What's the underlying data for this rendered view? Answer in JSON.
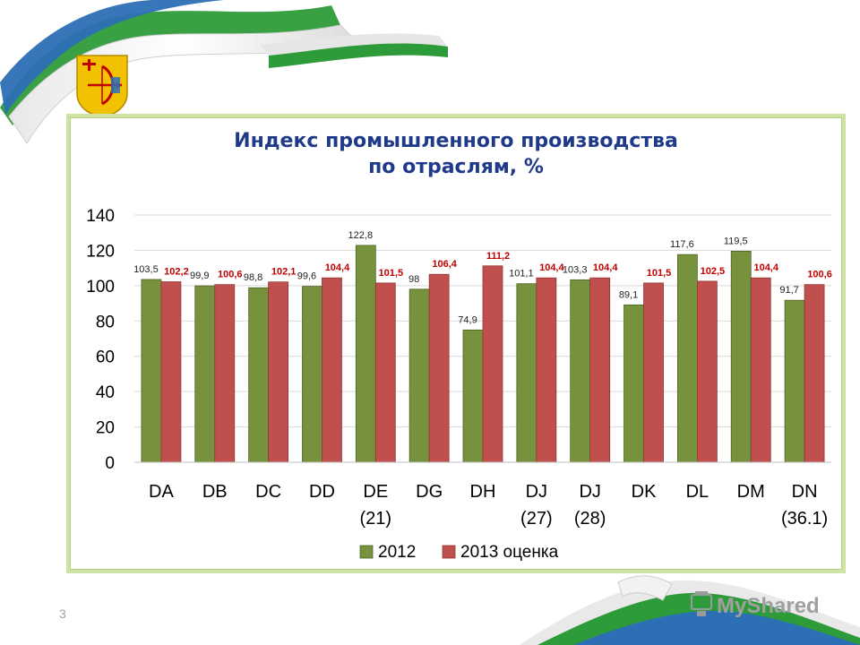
{
  "slide": {
    "number": "3",
    "watermark_text": "MyShared"
  },
  "colors": {
    "series2012": "#76923c",
    "series2013": "#c0504d",
    "title": "#1f3a8a",
    "label2013": "#c00000",
    "ribbonGreen": "#2e9b3a",
    "ribbonBlue": "#2c6fb5"
  },
  "chart_data": {
    "type": "bar",
    "title": "Индекс промышленного производства по отраслям, %",
    "title_lines": [
      "Индекс промышленного производства",
      "по отраслям, %"
    ],
    "categories": [
      "DA",
      "DB",
      "DC",
      "DD",
      "DE (21)",
      "DG",
      "DH",
      "DJ (27)",
      "DJ (28)",
      "DK",
      "DL",
      "DM",
      "DN (36.1)"
    ],
    "category_lines": [
      [
        "DA"
      ],
      [
        "DB"
      ],
      [
        "DC"
      ],
      [
        "DD"
      ],
      [
        "DE",
        "(21)"
      ],
      [
        "DG"
      ],
      [
        "DH"
      ],
      [
        "DJ",
        "(27)"
      ],
      [
        "DJ",
        "(28)"
      ],
      [
        "DK"
      ],
      [
        "DL"
      ],
      [
        "DM"
      ],
      [
        "DN",
        "(36.1)"
      ]
    ],
    "series": [
      {
        "name": "2012",
        "values": [
          103.5,
          99.9,
          98.8,
          99.6,
          122.8,
          98,
          74.9,
          101.1,
          103.3,
          89.1,
          117.6,
          119.5,
          91.7
        ],
        "labels": [
          "103,5",
          "99,9",
          "98,8",
          "99,6",
          "122,8",
          "98",
          "74,9",
          "101,1",
          "103,3",
          "89,1",
          "117,6",
          "119,5",
          "91,7"
        ]
      },
      {
        "name": "2013 оценка",
        "values": [
          102.2,
          100.6,
          102.1,
          104.4,
          101.5,
          106.4,
          111.2,
          104.4,
          104.4,
          101.5,
          102.5,
          104.4,
          100.6
        ],
        "labels": [
          "102,2",
          "100,6",
          "102,1",
          "104,4",
          "101,5",
          "106,4",
          "111,2",
          "104,4",
          "104,4",
          "101,5",
          "102,5",
          "104,4",
          "100,6"
        ]
      }
    ],
    "yticks": [
      "0",
      "20",
      "40",
      "60",
      "80",
      "100",
      "120",
      "140"
    ],
    "ylim": [
      0,
      140
    ],
    "grid": true,
    "legend": "bottom"
  }
}
